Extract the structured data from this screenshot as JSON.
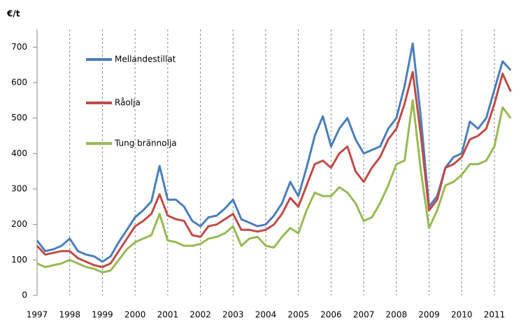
{
  "chart_data": {
    "type": "line",
    "y_label": "€/t",
    "x": [
      1997,
      1997.25,
      1997.5,
      1997.75,
      1998,
      1998.25,
      1998.5,
      1998.75,
      1999,
      1999.25,
      1999.5,
      1999.75,
      2000,
      2000.25,
      2000.5,
      2000.75,
      2001,
      2001.25,
      2001.5,
      2001.75,
      2002,
      2002.25,
      2002.5,
      2002.75,
      2003,
      2003.25,
      2003.5,
      2003.75,
      2004,
      2004.25,
      2004.5,
      2004.75,
      2005,
      2005.25,
      2005.5,
      2005.75,
      2006,
      2006.25,
      2006.5,
      2006.75,
      2007,
      2007.25,
      2007.5,
      2007.75,
      2008,
      2008.25,
      2008.5,
      2008.75,
      2009,
      2009.25,
      2009.5,
      2009.75,
      2010,
      2010.25,
      2010.5,
      2010.75,
      2011,
      2011.25,
      2011.5
    ],
    "series": [
      {
        "name": "Mellandestillat",
        "color": "#4a7ebb",
        "values": [
          155,
          125,
          130,
          140,
          160,
          125,
          115,
          110,
          95,
          110,
          150,
          185,
          220,
          240,
          265,
          365,
          270,
          270,
          250,
          210,
          195,
          220,
          225,
          245,
          270,
          215,
          205,
          195,
          200,
          225,
          260,
          320,
          280,
          360,
          450,
          505,
          420,
          470,
          500,
          440,
          400,
          410,
          420,
          470,
          500,
          590,
          710,
          500,
          250,
          280,
          360,
          390,
          400,
          490,
          470,
          500,
          580,
          660,
          635
        ]
      },
      {
        "name": "Råolja",
        "color": "#be4b48",
        "values": [
          140,
          115,
          120,
          125,
          125,
          105,
          95,
          85,
          80,
          90,
          125,
          160,
          195,
          210,
          230,
          285,
          225,
          215,
          210,
          170,
          165,
          195,
          200,
          215,
          230,
          185,
          185,
          180,
          185,
          200,
          230,
          275,
          250,
          310,
          370,
          380,
          360,
          400,
          420,
          350,
          320,
          360,
          390,
          440,
          470,
          540,
          630,
          450,
          240,
          270,
          360,
          370,
          390,
          440,
          450,
          470,
          540,
          625,
          575
        ]
      },
      {
        "name": "Tung brännolja",
        "color": "#98b954",
        "values": [
          90,
          80,
          85,
          90,
          100,
          90,
          80,
          75,
          65,
          70,
          100,
          130,
          150,
          160,
          170,
          230,
          155,
          150,
          140,
          140,
          145,
          160,
          165,
          175,
          195,
          140,
          160,
          165,
          140,
          135,
          165,
          190,
          175,
          240,
          290,
          280,
          280,
          305,
          290,
          260,
          210,
          220,
          260,
          310,
          370,
          380,
          550,
          350,
          190,
          240,
          310,
          320,
          340,
          370,
          370,
          380,
          420,
          530,
          500
        ]
      }
    ],
    "xlim": [
      1997,
      2011.6
    ],
    "xticks": [
      1997,
      1998,
      1999,
      2000,
      2001,
      2002,
      2003,
      2004,
      2005,
      2006,
      2007,
      2008,
      2009,
      2010,
      2011
    ],
    "ylim": [
      0,
      750
    ],
    "yticks": [
      0,
      100,
      200,
      300,
      400,
      500,
      600,
      700
    ],
    "grid": "x",
    "legend": "upper left"
  }
}
